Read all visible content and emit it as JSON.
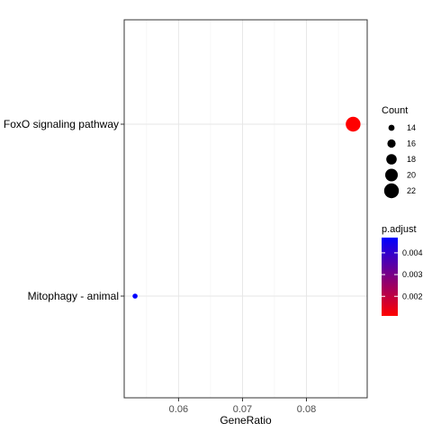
{
  "chart_data": {
    "type": "scatter",
    "title": "",
    "xlabel": "GeneRatio",
    "ylabel": "",
    "xlim": [
      0.0515,
      0.0895
    ],
    "x_ticks": [
      0.06,
      0.07,
      0.08
    ],
    "x_tick_labels": [
      "0.06",
      "0.07",
      "0.08"
    ],
    "categories": [
      "FoxO signaling pathway",
      "Mitophagy - animal"
    ],
    "grid": true,
    "legend_placement": "right",
    "points": [
      {
        "category": "FoxO signaling pathway",
        "x": 0.0873,
        "count": 22,
        "p_adjust": 0.0011,
        "color": "#ff0000"
      },
      {
        "category": "Mitophagy - animal",
        "x": 0.0532,
        "count": 13,
        "p_adjust": 0.0047,
        "color": "#0000ff"
      }
    ],
    "size_legend": {
      "title": "Count",
      "values": [
        14,
        16,
        18,
        20,
        22
      ],
      "labels": [
        "14",
        "16",
        "18",
        "20",
        "22"
      ]
    },
    "color_legend": {
      "title": "p.adjust",
      "range": [
        0.0011,
        0.0047
      ],
      "ticks": [
        0.002,
        0.003,
        0.004
      ],
      "tick_labels": [
        "0.002",
        "0.003",
        "0.004"
      ],
      "low_color": "#ff0000",
      "high_color": "#0000ff"
    }
  }
}
